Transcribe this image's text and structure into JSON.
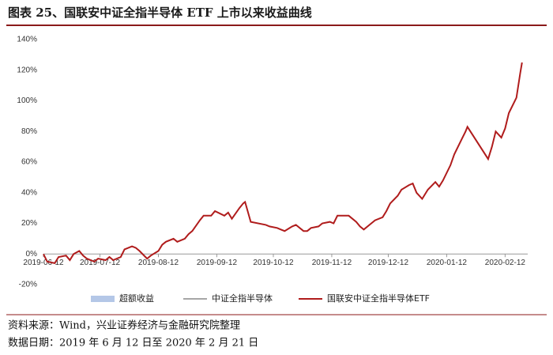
{
  "chart_data": {
    "type": "line",
    "title": "图表 25、国联安中证全指半导体 ETF 上市以来收益曲线",
    "source": "资料来源：Wind，兴业证券经济与金融研究院整理",
    "date_note": "数据日期：2019 年 6 月 12 日至 2020 年 2 月 21 日",
    "x": [
      "2019-06-12",
      "2019-06-14",
      "2019-06-18",
      "2019-06-20",
      "2019-06-24",
      "2019-06-26",
      "2019-06-28",
      "2019-07-01",
      "2019-07-03",
      "2019-07-05",
      "2019-07-09",
      "2019-07-11",
      "2019-07-15",
      "2019-07-17",
      "2019-07-19",
      "2019-07-23",
      "2019-07-25",
      "2019-07-29",
      "2019-07-31",
      "2019-08-02",
      "2019-08-06",
      "2019-08-08",
      "2019-08-12",
      "2019-08-14",
      "2019-08-16",
      "2019-08-20",
      "2019-08-22",
      "2019-08-26",
      "2019-08-28",
      "2019-08-30",
      "2019-09-03",
      "2019-09-05",
      "2019-09-09",
      "2019-09-11",
      "2019-09-16",
      "2019-09-18",
      "2019-09-20",
      "2019-09-24",
      "2019-09-26",
      "2019-09-27",
      "2019-09-30",
      "2019-10-08",
      "2019-10-10",
      "2019-10-14",
      "2019-10-16",
      "2019-10-18",
      "2019-10-22",
      "2019-10-24",
      "2019-10-28",
      "2019-10-30",
      "2019-11-01",
      "2019-11-05",
      "2019-11-07",
      "2019-11-11",
      "2019-11-13",
      "2019-11-15",
      "2019-11-19",
      "2019-11-21",
      "2019-11-25",
      "2019-11-27",
      "2019-11-29",
      "2019-12-03",
      "2019-12-05",
      "2019-12-09",
      "2019-12-11",
      "2019-12-13",
      "2019-12-17",
      "2019-12-19",
      "2019-12-23",
      "2019-12-25",
      "2019-12-27",
      "2019-12-30",
      "2020-01-02",
      "2020-01-06",
      "2020-01-08",
      "2020-01-10",
      "2020-01-14",
      "2020-01-16",
      "2020-01-20",
      "2020-01-22",
      "2020-01-23",
      "2020-02-03",
      "2020-02-05",
      "2020-02-07",
      "2020-02-10",
      "2020-02-12",
      "2020-02-14",
      "2020-02-18",
      "2020-02-20",
      "2020-02-21"
    ],
    "series": [
      {
        "name": "超额收益",
        "color": "#b4c7e7",
        "style": "area",
        "values": [
          null,
          null,
          null,
          null,
          null,
          null,
          null,
          null,
          null,
          null,
          null,
          null,
          null,
          null,
          null,
          null,
          null,
          null,
          null,
          null,
          null,
          null,
          null,
          null,
          null,
          null,
          null,
          null,
          null,
          null,
          null,
          null,
          null,
          null,
          null,
          null,
          null,
          null,
          null,
          null,
          null,
          null,
          null,
          null,
          null,
          null,
          null,
          null,
          null,
          null,
          null,
          null,
          null,
          null,
          null,
          null,
          null,
          null,
          null,
          null,
          null,
          null,
          null,
          null,
          null,
          null,
          null,
          null,
          null,
          null,
          null,
          null,
          null,
          null,
          null,
          null,
          null,
          null,
          null,
          null,
          null,
          null,
          null,
          null,
          null,
          null,
          null,
          null,
          null,
          null
        ]
      },
      {
        "name": "中证全指半导体",
        "color": "#a6a6a6",
        "style": "line",
        "values": [
          null,
          null,
          null,
          null,
          null,
          null,
          null,
          null,
          null,
          null,
          null,
          null,
          null,
          null,
          null,
          null,
          null,
          null,
          null,
          null,
          null,
          null,
          null,
          null,
          null,
          null,
          null,
          null,
          null,
          null,
          null,
          null,
          null,
          null,
          null,
          null,
          null,
          null,
          null,
          null,
          null,
          null,
          null,
          null,
          null,
          null,
          null,
          null,
          null,
          null,
          null,
          null,
          null,
          null,
          null,
          null,
          null,
          null,
          null,
          null,
          null,
          null,
          null,
          null,
          null,
          null,
          null,
          null,
          null,
          null,
          null,
          null,
          null,
          null,
          null,
          null,
          null,
          null,
          null,
          null,
          null,
          null,
          null,
          null,
          null,
          null,
          null,
          null,
          null,
          null
        ]
      },
      {
        "name": "国联安中证全指半导体ETF",
        "color": "#b01c1c",
        "style": "line",
        "values": [
          0,
          -5,
          -6,
          -2,
          -1,
          -4,
          0,
          2,
          -1,
          -3,
          -5,
          -3,
          -4,
          -2,
          -4,
          -2,
          3,
          5,
          4,
          2,
          -3,
          -1,
          2,
          6,
          8,
          10,
          8,
          10,
          13,
          15,
          22,
          25,
          25,
          28,
          25,
          27,
          23,
          30,
          33,
          34,
          21,
          19,
          18,
          17,
          16,
          15,
          18,
          19,
          15,
          15,
          17,
          18,
          20,
          21,
          20,
          25,
          25,
          25,
          21,
          18,
          16,
          20,
          22,
          24,
          28,
          33,
          38,
          42,
          45,
          46,
          40,
          36,
          42,
          47,
          44,
          48,
          58,
          65,
          75,
          80,
          83,
          62,
          70,
          80,
          76,
          82,
          92,
          102,
          118,
          125
        ]
      }
    ],
    "xlim": [
      "2019-06-12",
      "2020-02-24"
    ],
    "xticks": [
      "2019-06-12",
      "2019-07-12",
      "2019-08-12",
      "2019-09-12",
      "2019-10-12",
      "2019-11-12",
      "2019-12-12",
      "2020-01-12",
      "2020-02-12"
    ],
    "ylim": [
      -20,
      140
    ],
    "yticks": [
      {
        "value": -20,
        "label": "-20%"
      },
      {
        "value": 0,
        "label": "0%"
      },
      {
        "value": 20,
        "label": "20%"
      },
      {
        "value": 40,
        "label": "40%"
      },
      {
        "value": 60,
        "label": "60%"
      },
      {
        "value": 80,
        "label": "80%"
      },
      {
        "value": 100,
        "label": "100%"
      },
      {
        "value": 120,
        "label": "120%"
      },
      {
        "value": 140,
        "label": "140%"
      }
    ],
    "grid": false
  }
}
